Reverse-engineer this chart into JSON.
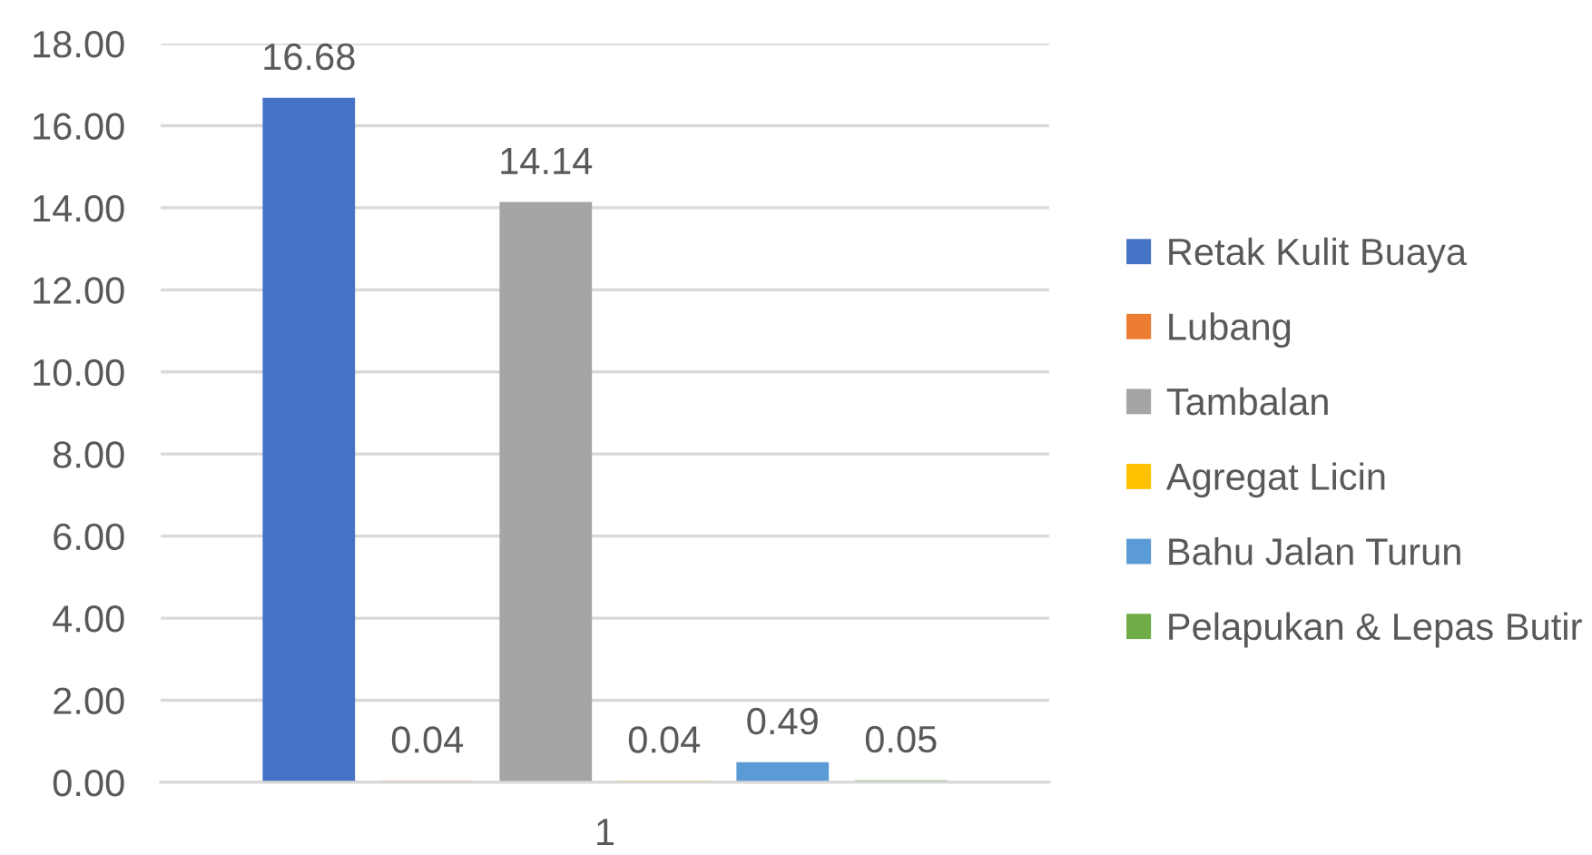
{
  "chart_data": {
    "type": "bar",
    "categories": [
      "1"
    ],
    "series": [
      {
        "name": "Retak Kulit Buaya",
        "color": "#4472c4",
        "values": [
          16.68
        ]
      },
      {
        "name": "Lubang",
        "color": "#ed7d31",
        "values": [
          0.04
        ]
      },
      {
        "name": "Tambalan",
        "color": "#a5a5a5",
        "values": [
          14.14
        ]
      },
      {
        "name": "Agregat Licin",
        "color": "#ffc000",
        "values": [
          0.04
        ]
      },
      {
        "name": "Bahu Jalan Turun",
        "color": "#5b9bd5",
        "values": [
          0.49
        ]
      },
      {
        "name": "Pelapukan & Lepas Butir",
        "color": "#70ad47",
        "values": [
          0.05
        ]
      }
    ],
    "ylim": [
      0,
      18
    ],
    "yticks": [
      {
        "value": 0,
        "label": "0.00"
      },
      {
        "value": 2,
        "label": "2.00"
      },
      {
        "value": 4,
        "label": "4.00"
      },
      {
        "value": 6,
        "label": "6.00"
      },
      {
        "value": 8,
        "label": "8.00"
      },
      {
        "value": 10,
        "label": "10.00"
      },
      {
        "value": 12,
        "label": "12.00"
      },
      {
        "value": 14,
        "label": "14.00"
      },
      {
        "value": 16,
        "label": "16.00"
      },
      {
        "value": 18,
        "label": "18.00"
      }
    ],
    "grid": "y",
    "legend": "right",
    "data_labels": true
  }
}
